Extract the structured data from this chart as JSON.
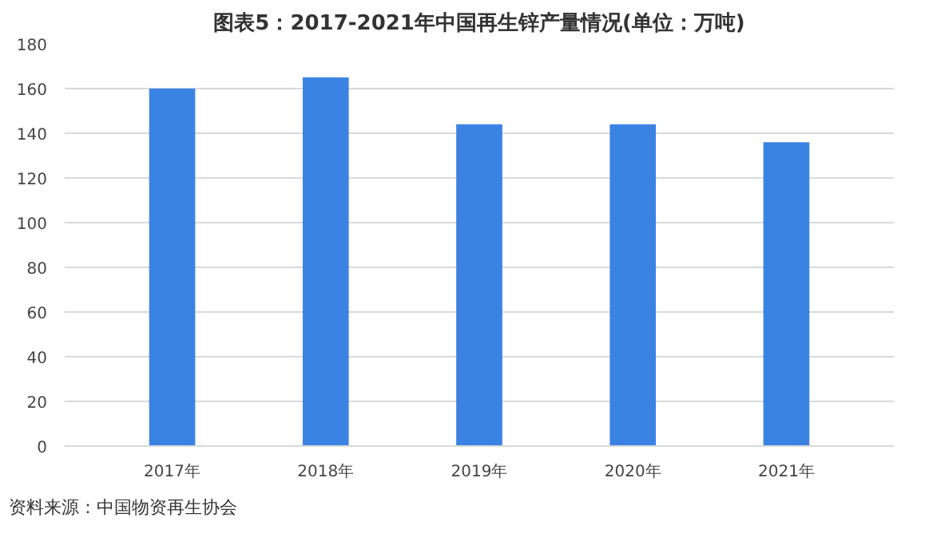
{
  "chart_data": {
    "type": "bar",
    "title": "图表5：2017-2021年中国再生锌产量情况(单位：万吨)",
    "categories": [
      "2017年",
      "2018年",
      "2019年",
      "2020年",
      "2021年"
    ],
    "values": [
      160,
      165,
      144,
      144,
      136
    ],
    "color": "#3b83e3",
    "ylim": [
      0,
      180
    ],
    "yticks": [
      0,
      20,
      40,
      60,
      80,
      100,
      120,
      140,
      160,
      180
    ],
    "grid": "y",
    "annotations": [
      "资料来源：中国物资再生协会"
    ]
  }
}
